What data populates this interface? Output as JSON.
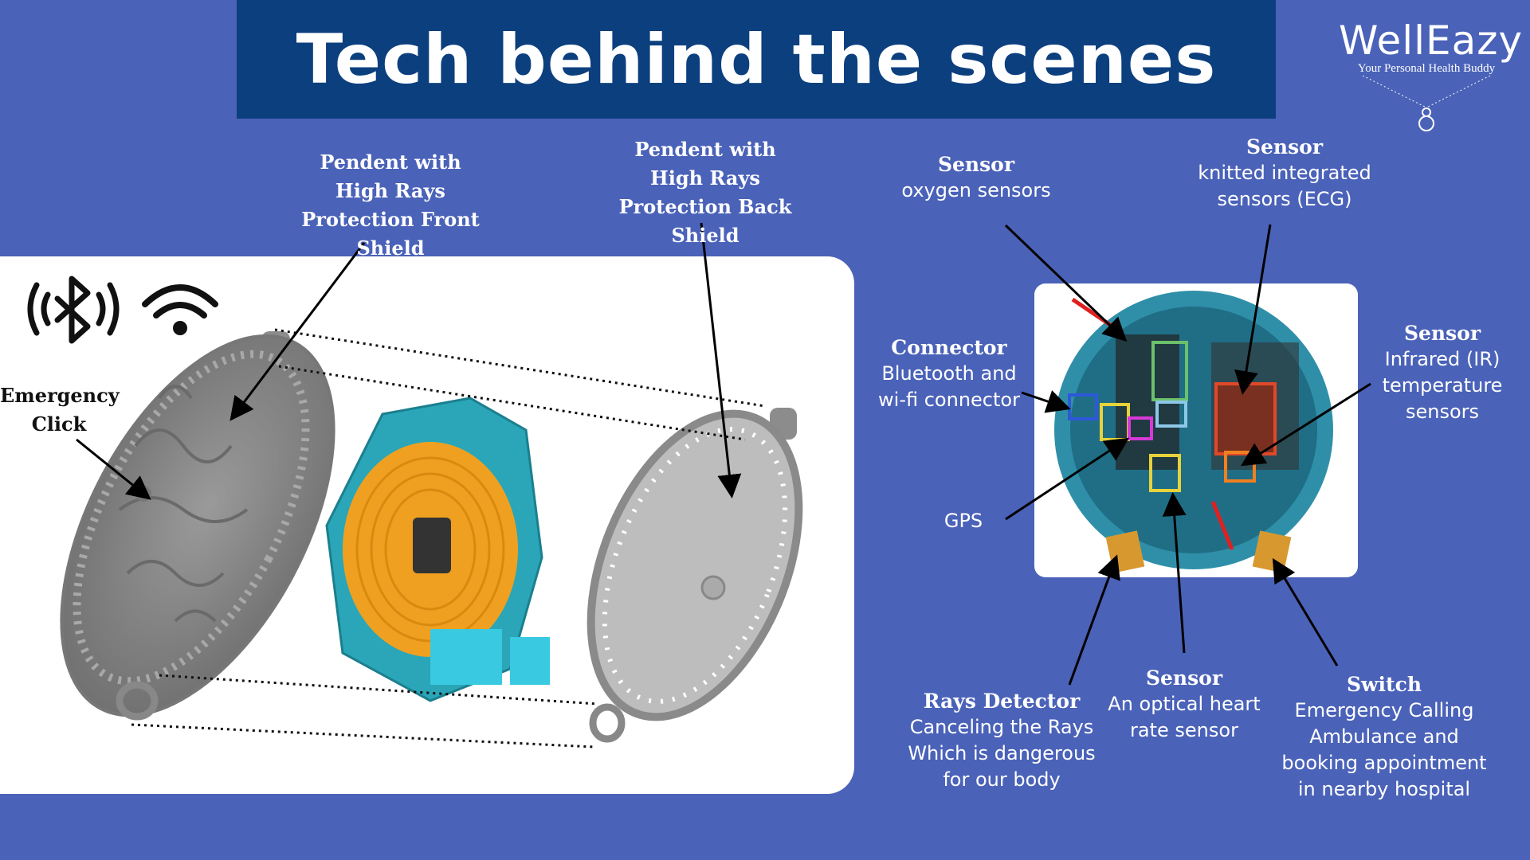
{
  "title": "Tech behind the scenes",
  "logo": {
    "brand": "WellEazy",
    "tagline": "Your Personal Health Buddy"
  },
  "icons": [
    "bluetooth-icon",
    "wifi-icon"
  ],
  "left_labels": {
    "front_shield": "Pendent with High Rays Protection Front Shield",
    "back_shield": "Pendent with High Rays Protection Back Shield",
    "emergency": "Emergency Click"
  },
  "sensor_labels": {
    "oxygen": {
      "heading": "Sensor",
      "text": "oxygen sensors"
    },
    "ecg": {
      "heading": "Sensor",
      "text": "knitted integrated sensors (ECG)"
    },
    "connector": {
      "heading": "Connector",
      "text": "Bluetooth and wi-fi connector"
    },
    "infrared": {
      "heading": "Sensor",
      "text": "Infrared (IR) temperature sensors"
    },
    "gps": {
      "text": "GPS"
    },
    "rays": {
      "heading": "Rays Detector",
      "text": "Canceling the Rays Which is dangerous for our body"
    },
    "heart": {
      "heading": "Sensor",
      "text": "An optical heart rate sensor"
    },
    "switch": {
      "heading": "Switch",
      "text": "Emergency Calling Ambulance and booking appointment in  nearby hospital"
    }
  },
  "colors": {
    "background": "#4a62b8",
    "banner": "#0c3f7e",
    "coil": "#f0a020",
    "pcb": "#2aa6b8",
    "shield": "#8a8a8a"
  }
}
